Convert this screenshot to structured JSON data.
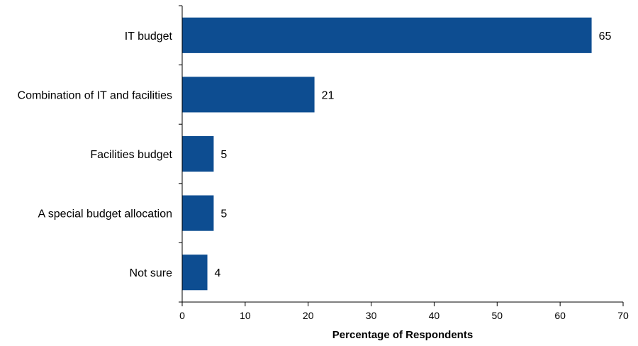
{
  "chart_data": {
    "type": "bar",
    "orientation": "horizontal",
    "categories": [
      "IT budget",
      "Combination of IT and facilities",
      "Facilities budget",
      "A special budget allocation",
      "Not sure"
    ],
    "values": [
      65,
      21,
      5,
      5,
      4
    ],
    "value_labels": [
      "65",
      "21",
      "5",
      "5",
      "4"
    ],
    "title": "",
    "xlabel": "Percentage of Respondents",
    "ylabel": "",
    "xlim": [
      0,
      70
    ],
    "xticks": [
      0,
      10,
      20,
      30,
      40,
      50,
      60,
      70
    ],
    "grid": false,
    "legend": "none",
    "bar_color": "#0d4d91"
  }
}
